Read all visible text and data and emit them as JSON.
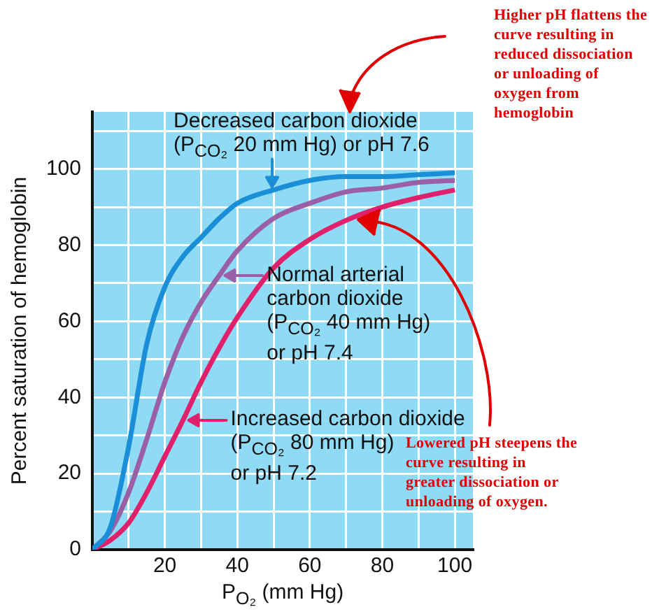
{
  "chart_data": {
    "type": "line",
    "xlabel": "P$_{O₂}$ (mm Hg)",
    "ylabel": "Percent saturation of hemoglobin",
    "x": [
      0,
      5,
      10,
      15,
      20,
      25,
      30,
      35,
      40,
      50,
      60,
      70,
      80,
      90,
      100
    ],
    "series": [
      {
        "name": "Decreased carbon dioxide\n(P$_{CO₂}$ 20 mm Hg) or pH 7.6",
        "color": "#1a8fd8",
        "values": [
          0,
          6,
          27,
          54,
          69,
          77,
          82,
          87,
          91,
          94.5,
          97,
          98,
          98,
          98.5,
          99
        ]
      },
      {
        "name": "Normal arterial\ncarbon dioxide\n(P$_{CO₂}$ 40 mm Hg)\nor pH 7.4",
        "color": "#9b5fa6",
        "values": [
          0,
          5,
          15,
          29,
          44,
          56,
          65,
          72,
          78.5,
          87,
          91,
          94,
          95,
          96.5,
          97
        ]
      },
      {
        "name": "Increased carbon dioxide\n(P$_{CO₂}$ 80 mm Hg)\nor pH 7.2",
        "color": "#e0206a",
        "values": [
          0,
          2.5,
          7,
          15,
          24.5,
          34,
          44,
          53,
          61,
          74,
          81.5,
          86.5,
          90,
          92.5,
          94.5
        ]
      }
    ],
    "xlim": [
      0,
      105
    ],
    "ylim": [
      0,
      115
    ],
    "xticks": [
      {
        "value": 10,
        "label": null
      },
      20,
      {
        "value": 30,
        "label": null
      },
      40,
      {
        "value": 50,
        "label": null
      },
      60,
      {
        "value": 70,
        "label": null
      },
      80,
      {
        "value": 90,
        "label": null
      },
      100
    ],
    "yticks": [
      0,
      {
        "value": 10,
        "label": null
      },
      20,
      {
        "value": 30,
        "label": null
      },
      40,
      {
        "value": 50,
        "label": null
      },
      60,
      {
        "value": 70,
        "label": null
      },
      80,
      {
        "value": 90,
        "label": null
      },
      100,
      {
        "value": 110,
        "label": null
      }
    ],
    "grid": true,
    "legend": "right",
    "marker": "none",
    "line_style": "solid",
    "annotations": [
      "Higher pH flattens the curve resulting in reduced dissociation or unloading of oxygen from hemoglobin",
      "Lowered pH steepens the curve resulting in greater dissociation or unloading of oxygen."
    ]
  }
}
